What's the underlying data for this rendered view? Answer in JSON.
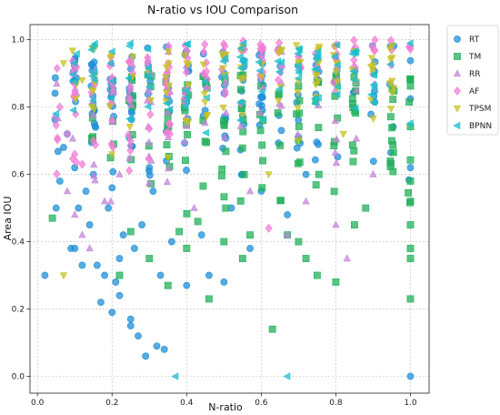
{
  "chart_data": {
    "type": "scatter",
    "title": "N-ratio vs IOU Comparison",
    "xlabel": "N-ratio",
    "ylabel": "Area IOU",
    "xlim": [
      -0.02,
      1.05
    ],
    "ylim": [
      -0.05,
      1.045
    ],
    "xticks": [
      "0.0",
      "0.2",
      "0.4",
      "0.6",
      "0.8",
      "1.0"
    ],
    "yticks": [
      "0.0",
      "0.2",
      "0.4",
      "0.6",
      "0.8",
      "1.0"
    ],
    "grid": true,
    "legend_position": "outside-right-top",
    "series": [
      {
        "name": "RT",
        "marker": "circle",
        "color": "#1f8fd6",
        "points": [
          [
            0.02,
            0.3
          ],
          [
            0.05,
            0.5
          ],
          [
            0.06,
            0.58
          ],
          [
            0.07,
            0.68
          ],
          [
            0.08,
            0.72
          ],
          [
            0.09,
            0.38
          ],
          [
            0.1,
            0.62
          ],
          [
            0.1,
            0.38
          ],
          [
            0.11,
            0.5
          ],
          [
            0.12,
            0.33
          ],
          [
            0.13,
            0.55
          ],
          [
            0.14,
            0.45
          ],
          [
            0.15,
            0.6
          ],
          [
            0.16,
            0.33
          ],
          [
            0.17,
            0.22
          ],
          [
            0.18,
            0.3
          ],
          [
            0.19,
            0.5
          ],
          [
            0.2,
            0.56
          ],
          [
            0.2,
            0.19
          ],
          [
            0.21,
            0.28
          ],
          [
            0.22,
            0.24
          ],
          [
            0.22,
            0.35
          ],
          [
            0.23,
            0.42
          ],
          [
            0.25,
            0.17
          ],
          [
            0.25,
            0.15
          ],
          [
            0.26,
            0.38
          ],
          [
            0.27,
            0.12
          ],
          [
            0.28,
            0.45
          ],
          [
            0.29,
            0.06
          ],
          [
            0.3,
            0.62
          ],
          [
            0.31,
            0.55
          ],
          [
            0.32,
            0.09
          ],
          [
            0.33,
            0.3
          ],
          [
            0.34,
            0.08
          ],
          [
            0.36,
            0.4
          ],
          [
            0.4,
            0.27
          ],
          [
            0.44,
            0.42
          ],
          [
            0.46,
            0.3
          ],
          [
            0.5,
            0.28
          ],
          [
            0.52,
            0.5
          ],
          [
            0.57,
            0.38
          ],
          [
            0.6,
            0.55
          ],
          [
            0.67,
            0.48
          ],
          [
            0.72,
            0.6
          ],
          [
            1.0,
            0.0
          ],
          [
            1.0,
            0.62
          ]
        ],
        "clusters": [
          [
            0.05,
            0.3,
            0.55,
            0.95,
            60
          ],
          [
            0.3,
            0.6,
            0.5,
            0.98,
            55
          ],
          [
            0.6,
            1.0,
            0.55,
            0.99,
            50
          ]
        ]
      },
      {
        "name": "TM",
        "marker": "square",
        "color": "#22b05a",
        "points": [
          [
            0.04,
            0.47
          ],
          [
            0.22,
            0.3
          ],
          [
            0.25,
            0.43
          ],
          [
            0.3,
            0.35
          ],
          [
            0.35,
            0.27
          ],
          [
            0.38,
            0.43
          ],
          [
            0.4,
            0.38
          ],
          [
            0.43,
            0.46
          ],
          [
            0.46,
            0.23
          ],
          [
            0.5,
            0.4
          ],
          [
            0.55,
            0.35
          ],
          [
            0.57,
            0.42
          ],
          [
            0.63,
            0.14
          ],
          [
            0.67,
            0.42
          ],
          [
            0.7,
            0.4
          ],
          [
            0.72,
            0.35
          ],
          [
            0.75,
            0.3
          ],
          [
            0.8,
            0.28
          ],
          [
            0.85,
            0.45
          ],
          [
            0.88,
            0.5
          ],
          [
            0.95,
            0.7
          ],
          [
            1.0,
            0.23
          ],
          [
            1.0,
            0.35
          ],
          [
            1.0,
            0.38
          ],
          [
            1.0,
            0.45
          ],
          [
            1.0,
            0.52
          ],
          [
            1.0,
            0.58
          ]
        ],
        "clusters": [
          [
            0.15,
            0.45,
            0.45,
            0.9,
            45
          ],
          [
            0.45,
            0.9,
            0.45,
            0.9,
            70
          ],
          [
            0.95,
            1.0,
            0.45,
            0.9,
            20
          ]
        ]
      },
      {
        "name": "RR",
        "marker": "triangle-up",
        "color": "#c486d8",
        "points": [
          [
            0.08,
            0.55
          ],
          [
            0.1,
            0.48
          ],
          [
            0.12,
            0.42
          ],
          [
            0.14,
            0.38
          ],
          [
            0.18,
            0.52
          ],
          [
            0.22,
            0.6
          ],
          [
            0.42,
            0.5
          ],
          [
            0.57,
            0.55
          ],
          [
            0.67,
            0.42
          ],
          [
            0.72,
            0.52
          ],
          [
            0.8,
            0.45
          ],
          [
            0.83,
            0.35
          ],
          [
            0.9,
            0.6
          ]
        ],
        "clusters": [
          [
            0.05,
            0.35,
            0.5,
            0.95,
            50
          ],
          [
            0.35,
            0.9,
            0.6,
            0.98,
            40
          ]
        ]
      },
      {
        "name": "AF",
        "marker": "diamond",
        "color": "#f27ed5",
        "points": [
          [
            0.06,
            0.8
          ],
          [
            0.08,
            0.72
          ],
          [
            0.1,
            0.66
          ],
          [
            0.12,
            0.63
          ],
          [
            0.15,
            0.7
          ],
          [
            0.2,
            0.76
          ],
          [
            0.25,
            0.7
          ],
          [
            0.3,
            0.82
          ],
          [
            0.62,
            0.44
          ],
          [
            0.95,
            0.97
          ],
          [
            1.0,
            0.98
          ]
        ],
        "clusters": [
          [
            0.05,
            0.4,
            0.55,
            0.95,
            55
          ],
          [
            0.35,
            1.0,
            0.8,
            1.0,
            70
          ]
        ]
      },
      {
        "name": "TPSM",
        "marker": "triangle-down",
        "color": "#c7c221",
        "points": [
          [
            0.07,
            0.3
          ],
          [
            0.07,
            0.93
          ],
          [
            0.12,
            0.88
          ],
          [
            0.2,
            0.66
          ],
          [
            0.35,
            0.65
          ],
          [
            0.4,
            0.93
          ],
          [
            0.55,
            0.98
          ],
          [
            0.62,
            0.6
          ],
          [
            0.7,
            0.7
          ],
          [
            0.82,
            0.72
          ],
          [
            0.9,
            0.9
          ]
        ],
        "clusters": [
          [
            0.08,
            0.5,
            0.7,
            0.98,
            40
          ],
          [
            0.5,
            0.98,
            0.75,
            0.99,
            60
          ]
        ]
      },
      {
        "name": "BPNN",
        "marker": "triangle-left",
        "color": "#17c0cf",
        "points": [
          [
            0.37,
            0.0
          ],
          [
            0.67,
            0.0
          ],
          [
            0.05,
            0.78
          ],
          [
            0.15,
            0.82
          ],
          [
            0.3,
            0.86
          ],
          [
            1.0,
            0.99
          ]
        ],
        "clusters": [
          [
            0.08,
            0.98,
            0.72,
            0.99,
            90
          ]
        ]
      }
    ]
  }
}
